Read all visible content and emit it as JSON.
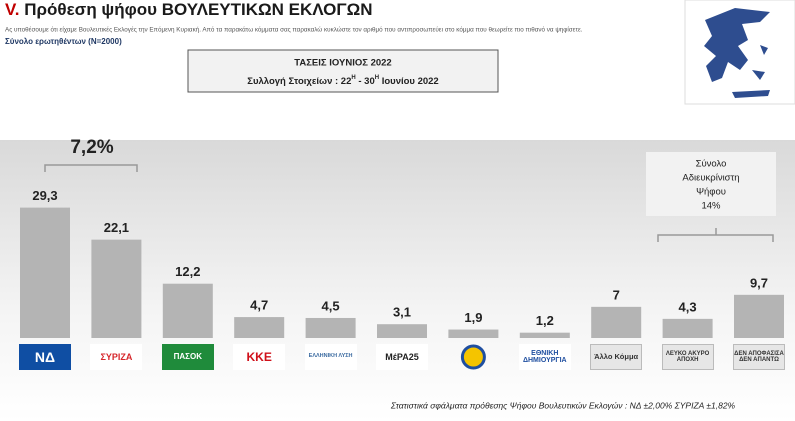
{
  "header": {
    "title_prefix": "V.",
    "title": "Πρόθεση ψήφου ΒΟΥΛΕΥΤΙΚΩΝ ΕΚΛΟΓΩΝ",
    "subtitle": "Ας υποθέσουμε ότι είχαμε Βουλευτικές Εκλογές την Επόμενη Κυριακή. Από τα παρακάτω κόμματα σας παρακαλώ κυκλώστε τον αριθμό που αντιπροσωπεύει στο κόμμα που θεωρείτε πιο πιθανό να ψηφίσετε.",
    "sample": "Σύνολο ερωτηθέντων (Ν=2000)",
    "box_title": "ΤΑΣΕΙΣ ΙΟΥΝΙΟΣ 2022",
    "box_collection": [
      "Συλλογή Στοιχείων : 22",
      "Η",
      "  -  30",
      "Η",
      " Ιουνίου 2022"
    ]
  },
  "chart_data": {
    "type": "bar",
    "categories": [
      "ΝΔ",
      "ΣΥΡΙΖΑ",
      "ΠΑΣΟΚ",
      "ΚΚΕ",
      "ΕΛΛΗΝΙΚΗ ΛΥΣΗ",
      "ΜέΡΑ25",
      null,
      "ΕΘΝΙΚΗ ΔΗΜΙΟΥΡΓΙΑ",
      "Άλλο Κόμμα",
      "ΛΕΥΚΟ ΑΚΥΡΟ ΑΠΟΧΗ",
      "ΔΕΝ ΑΠΟΦΑΣΙΣΑ ΔΕΝ ΑΠΑΝΤΩ"
    ],
    "values": [
      29.3,
      22.1,
      12.2,
      4.7,
      4.5,
      3.1,
      1.9,
      1.2,
      7,
      4.3,
      9.7
    ],
    "value_labels": [
      "29,3",
      "22,1",
      "12,2",
      "4,7",
      "4,5",
      "3,1",
      "1,9",
      "1,2",
      "7",
      "4,3",
      "9,7"
    ],
    "color": "#b4b4b4",
    "gap_annotation": "7,2%",
    "undecided_lines": [
      "Σύνολο",
      "Αδιευκρίνιστη",
      "Ψήφου",
      "14%"
    ],
    "footnote": "Στατιστικά σφάλματα πρόθεσης Ψήφου Βουλευτικών Εκλογών : ΝΔ ±2,00% ΣΥΡΙΖΑ ±1,82%"
  }
}
